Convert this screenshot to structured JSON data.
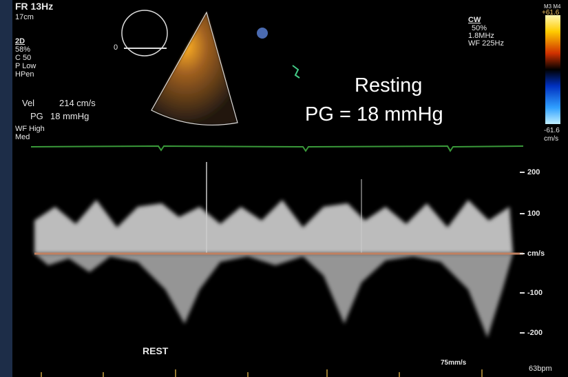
{
  "header": {
    "frame_rate": "FR 13Hz",
    "depth": "17cm"
  },
  "settings_2d": {
    "mode": "2D",
    "gain": "58%",
    "compression": "C 50",
    "power": "P Low",
    "harmonic": "HPen"
  },
  "measurements": {
    "vel_label": "Vel",
    "vel_value": "214 cm/s",
    "pg_label": "PG",
    "pg_value": "18 mmHg"
  },
  "filter": {
    "wall_filter": "WF High",
    "scale": "Med"
  },
  "angle_marker": "0",
  "cw_settings": {
    "mode": "CW",
    "gain": "50%",
    "frequency": "1.8MHz",
    "wall_filter": "WF 225Hz"
  },
  "color_bar": {
    "map": "M3 M4",
    "max": "+61.6",
    "min": "-61.6",
    "unit": "cm/s"
  },
  "annotation": {
    "line1": "Resting",
    "line2": "PG = 18 mmHg"
  },
  "velocity_scale": [
    "200",
    "100",
    "cm/s",
    "-100",
    "-200"
  ],
  "footer": {
    "label": "REST",
    "sweep_speed": "75mm/s",
    "heart_rate": "63bpm"
  }
}
